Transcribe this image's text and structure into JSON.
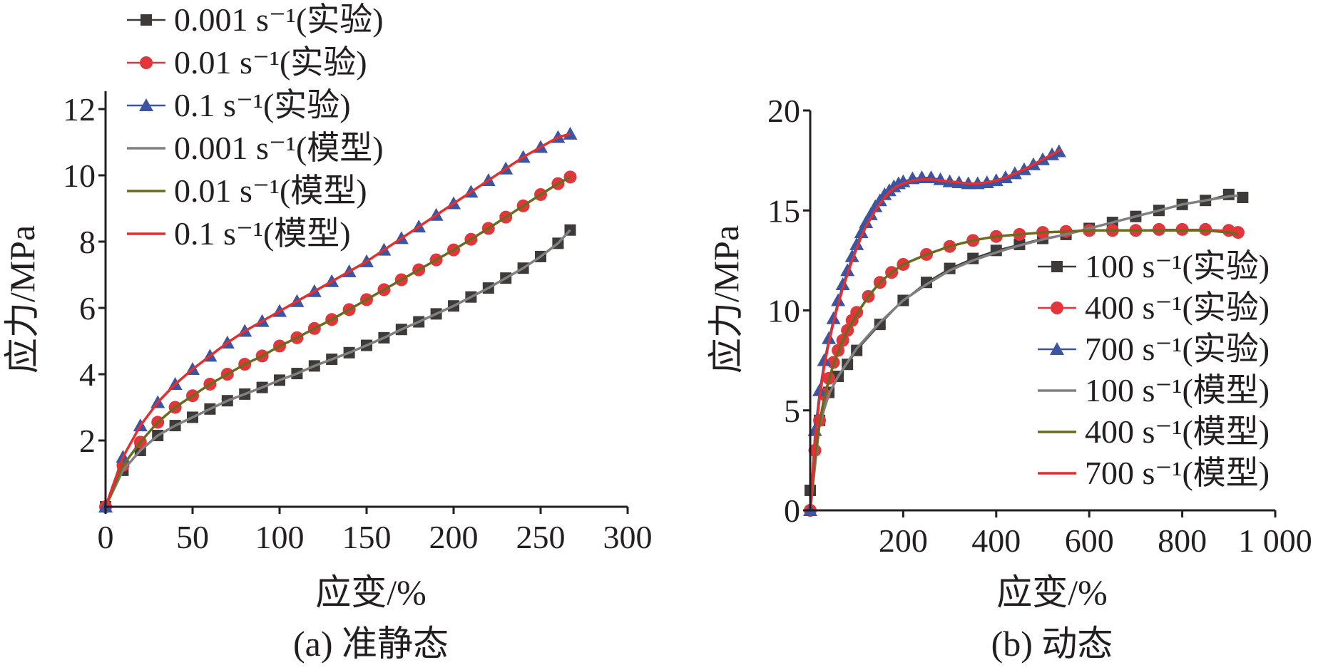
{
  "chart_data": [
    {
      "type": "line",
      "caption": "(a) 准静态",
      "xlabel": "应变/%",
      "ylabel": "应力/MPa",
      "xlim": [
        0,
        300
      ],
      "ylim": [
        0,
        12
      ],
      "xticks": [
        "0",
        "50",
        "100",
        "150",
        "200",
        "250",
        "300"
      ],
      "yticks": [
        "2",
        "4",
        "6",
        "8",
        "10",
        "12"
      ],
      "legend_position": "top-left (above plot)",
      "series": [
        {
          "name": "0.001 s⁻¹(实验)",
          "style": "square-markers",
          "color": "#3e3a39",
          "x": [
            0,
            10,
            20,
            30,
            40,
            50,
            60,
            70,
            80,
            90,
            100,
            110,
            120,
            130,
            140,
            150,
            160,
            170,
            180,
            190,
            200,
            210,
            220,
            230,
            240,
            250,
            260,
            267
          ],
          "y": [
            0,
            1.1,
            1.7,
            2.15,
            2.45,
            2.7,
            2.95,
            3.2,
            3.4,
            3.6,
            3.82,
            4.02,
            4.25,
            4.45,
            4.65,
            4.87,
            5.1,
            5.35,
            5.58,
            5.82,
            6.06,
            6.33,
            6.6,
            6.9,
            7.2,
            7.55,
            7.95,
            8.35
          ]
        },
        {
          "name": "0.01 s⁻¹(实验)",
          "style": "circle-markers",
          "color": "#e2363b",
          "x": [
            0,
            10,
            20,
            30,
            40,
            50,
            60,
            70,
            80,
            90,
            100,
            110,
            120,
            130,
            140,
            150,
            160,
            170,
            180,
            190,
            200,
            210,
            220,
            230,
            240,
            250,
            260,
            267
          ],
          "y": [
            0,
            1.25,
            1.95,
            2.55,
            3.0,
            3.35,
            3.7,
            4.0,
            4.3,
            4.55,
            4.85,
            5.1,
            5.38,
            5.65,
            5.95,
            6.25,
            6.55,
            6.85,
            7.15,
            7.45,
            7.75,
            8.07,
            8.4,
            8.74,
            9.08,
            9.42,
            9.75,
            9.95
          ]
        },
        {
          "name": "0.1 s⁻¹(实验)",
          "style": "triangle-markers",
          "color": "#3b55a3",
          "x": [
            0,
            10,
            20,
            30,
            40,
            50,
            60,
            70,
            80,
            90,
            100,
            110,
            120,
            130,
            140,
            150,
            160,
            170,
            180,
            190,
            200,
            210,
            220,
            230,
            240,
            250,
            260,
            267
          ],
          "y": [
            0,
            1.5,
            2.45,
            3.15,
            3.7,
            4.15,
            4.55,
            4.95,
            5.3,
            5.6,
            5.9,
            6.2,
            6.5,
            6.8,
            7.1,
            7.4,
            7.75,
            8.1,
            8.45,
            8.8,
            9.15,
            9.5,
            9.85,
            10.2,
            10.55,
            10.85,
            11.15,
            11.25
          ]
        },
        {
          "name": "0.001 s⁻¹(模型)",
          "style": "line",
          "color": "#808080",
          "x": [
            0,
            10,
            20,
            30,
            40,
            50,
            60,
            70,
            80,
            90,
            100,
            110,
            120,
            130,
            140,
            150,
            160,
            170,
            180,
            190,
            200,
            210,
            220,
            230,
            240,
            250,
            260,
            267
          ],
          "y": [
            0,
            1.1,
            1.7,
            2.15,
            2.45,
            2.7,
            2.95,
            3.2,
            3.4,
            3.6,
            3.82,
            4.02,
            4.25,
            4.45,
            4.65,
            4.87,
            5.1,
            5.35,
            5.58,
            5.82,
            6.06,
            6.33,
            6.6,
            6.9,
            7.2,
            7.55,
            7.95,
            8.35
          ]
        },
        {
          "name": "0.01 s⁻¹(模型)",
          "style": "line",
          "color": "#6b6b1f",
          "x": [
            0,
            10,
            20,
            30,
            40,
            50,
            60,
            70,
            80,
            90,
            100,
            110,
            120,
            130,
            140,
            150,
            160,
            170,
            180,
            190,
            200,
            210,
            220,
            230,
            240,
            250,
            260,
            267
          ],
          "y": [
            0,
            1.25,
            1.95,
            2.55,
            3.0,
            3.35,
            3.7,
            4.0,
            4.3,
            4.55,
            4.85,
            5.1,
            5.38,
            5.65,
            5.95,
            6.25,
            6.55,
            6.85,
            7.15,
            7.45,
            7.75,
            8.07,
            8.4,
            8.74,
            9.08,
            9.42,
            9.75,
            9.95
          ]
        },
        {
          "name": "0.1 s⁻¹(模型)",
          "style": "line",
          "color": "#e62e2e",
          "x": [
            0,
            10,
            20,
            30,
            40,
            50,
            60,
            70,
            80,
            90,
            100,
            110,
            120,
            130,
            140,
            150,
            160,
            170,
            180,
            190,
            200,
            210,
            220,
            230,
            240,
            250,
            260,
            267
          ],
          "y": [
            0,
            1.5,
            2.45,
            3.15,
            3.7,
            4.15,
            4.55,
            4.95,
            5.3,
            5.6,
            5.9,
            6.2,
            6.5,
            6.8,
            7.1,
            7.4,
            7.75,
            8.1,
            8.45,
            8.8,
            9.15,
            9.5,
            9.85,
            10.2,
            10.55,
            10.85,
            11.15,
            11.25
          ]
        }
      ]
    },
    {
      "type": "line",
      "caption": "(b) 动态",
      "xlabel": "应变/%",
      "ylabel": "应力/MPa",
      "xlim": [
        0,
        1000
      ],
      "ylim": [
        0,
        20
      ],
      "xticks": [
        "200",
        "400",
        "600",
        "800",
        "1 000"
      ],
      "yticks": [
        "0",
        "5",
        "10",
        "15",
        "20"
      ],
      "legend_position": "right (inside plot)",
      "series": [
        {
          "name": "100 s⁻¹(实验)",
          "style": "square-markers",
          "color": "#3e3a39",
          "x": [
            0,
            20,
            40,
            60,
            80,
            100,
            150,
            200,
            250,
            300,
            350,
            400,
            450,
            500,
            550,
            600,
            650,
            700,
            750,
            800,
            850,
            900,
            930
          ],
          "y": [
            1.0,
            4.5,
            5.9,
            6.7,
            7.3,
            8.0,
            9.3,
            10.5,
            11.4,
            12.1,
            12.6,
            13.0,
            13.3,
            13.6,
            13.8,
            14.1,
            14.4,
            14.7,
            15.0,
            15.3,
            15.5,
            15.8,
            15.65
          ]
        },
        {
          "name": "400 s⁻¹(实验)",
          "style": "circle-markers",
          "color": "#e2363b",
          "x": [
            0,
            10,
            20,
            30,
            40,
            50,
            60,
            70,
            80,
            90,
            100,
            125,
            150,
            175,
            200,
            250,
            300,
            350,
            400,
            450,
            500,
            550,
            600,
            650,
            700,
            750,
            800,
            850,
            900,
            920
          ],
          "y": [
            0,
            3,
            4.5,
            5.8,
            6.6,
            7.4,
            8.0,
            8.5,
            9.0,
            9.5,
            9.9,
            10.7,
            11.4,
            11.9,
            12.3,
            12.8,
            13.2,
            13.5,
            13.7,
            13.8,
            13.9,
            13.95,
            14.0,
            14.0,
            14.0,
            14.05,
            14.05,
            14.05,
            14.0,
            13.9
          ]
        },
        {
          "name": "700 s⁻¹(实验)",
          "style": "triangle-markers",
          "color": "#3b55a3",
          "x": [
            0,
            10,
            20,
            30,
            40,
            50,
            60,
            70,
            80,
            90,
            100,
            110,
            120,
            130,
            140,
            150,
            160,
            170,
            180,
            190,
            200,
            220,
            240,
            260,
            280,
            300,
            320,
            340,
            360,
            380,
            400,
            420,
            440,
            460,
            480,
            500,
            520,
            535
          ],
          "y": [
            0,
            4.0,
            6.0,
            7.5,
            8.6,
            9.6,
            10.5,
            11.3,
            12.0,
            12.7,
            13.3,
            13.9,
            14.4,
            14.8,
            15.2,
            15.5,
            15.8,
            16.0,
            16.2,
            16.35,
            16.45,
            16.6,
            16.65,
            16.65,
            16.55,
            16.45,
            16.4,
            16.35,
            16.35,
            16.4,
            16.5,
            16.65,
            16.85,
            17.05,
            17.3,
            17.55,
            17.8,
            17.95
          ]
        },
        {
          "name": "100 s⁻¹(模型)",
          "style": "line",
          "color": "#808080",
          "x": [
            0,
            20,
            40,
            60,
            80,
            100,
            150,
            200,
            250,
            300,
            350,
            400,
            450,
            500,
            550,
            600,
            650,
            700,
            750,
            800,
            850,
            900,
            920
          ],
          "y": [
            0,
            4.3,
            5.8,
            6.7,
            7.4,
            8.1,
            9.4,
            10.5,
            11.3,
            12.0,
            12.5,
            12.9,
            13.25,
            13.55,
            13.8,
            14.1,
            14.4,
            14.7,
            15.0,
            15.3,
            15.5,
            15.7,
            15.75
          ]
        },
        {
          "name": "400 s⁻¹(模型)",
          "style": "line",
          "color": "#6b6b1f",
          "x": [
            0,
            10,
            20,
            30,
            40,
            50,
            60,
            70,
            80,
            90,
            100,
            125,
            150,
            175,
            200,
            250,
            300,
            350,
            400,
            450,
            500,
            550,
            600,
            650,
            700,
            750,
            800,
            850,
            900,
            920
          ],
          "y": [
            0,
            2.6,
            4.3,
            5.6,
            6.5,
            7.3,
            7.9,
            8.5,
            9.0,
            9.4,
            9.8,
            10.7,
            11.4,
            11.9,
            12.3,
            12.8,
            13.2,
            13.5,
            13.7,
            13.8,
            13.9,
            13.95,
            14.0,
            14.0,
            14.0,
            14.0,
            14.0,
            14.0,
            13.9,
            13.8
          ]
        },
        {
          "name": "700 s⁻¹(模型)",
          "style": "line",
          "color": "#e62e2e",
          "x": [
            0,
            10,
            20,
            30,
            40,
            50,
            60,
            70,
            80,
            90,
            100,
            110,
            120,
            130,
            140,
            150,
            160,
            170,
            180,
            190,
            200,
            220,
            240,
            260,
            280,
            300,
            320,
            340,
            360,
            380,
            400,
            420,
            440,
            460,
            480,
            500,
            520,
            540
          ],
          "y": [
            0,
            3.5,
            5.6,
            7.2,
            8.4,
            9.4,
            10.3,
            11.1,
            11.8,
            12.5,
            13.1,
            13.7,
            14.2,
            14.6,
            15.0,
            15.35,
            15.65,
            15.9,
            16.1,
            16.25,
            16.35,
            16.5,
            16.55,
            16.55,
            16.5,
            16.45,
            16.4,
            16.35,
            16.35,
            16.4,
            16.5,
            16.65,
            16.85,
            17.05,
            17.3,
            17.55,
            17.8,
            18.05
          ]
        }
      ]
    }
  ]
}
